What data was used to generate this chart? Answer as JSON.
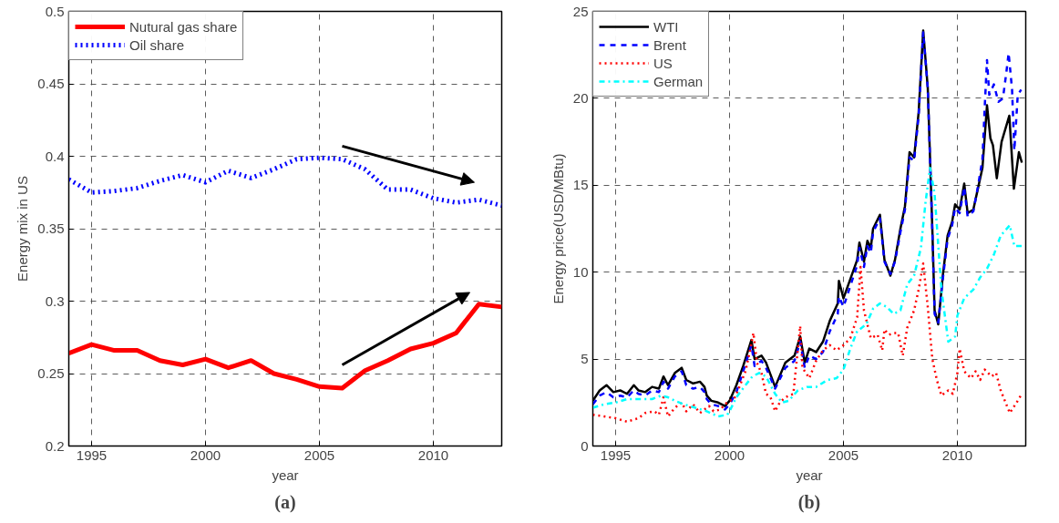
{
  "chart_data": [
    {
      "type": "line",
      "title": "(a)",
      "xlabel": "year",
      "ylabel": "Energy mix in US",
      "xlim": [
        1994,
        2013
      ],
      "xticks": [
        1995,
        2000,
        2005,
        2010
      ],
      "ylim": [
        0.2,
        0.5
      ],
      "yticks": [
        0.2,
        0.25,
        0.3,
        0.35,
        0.4,
        0.45,
        0.5
      ],
      "grid": true,
      "legend": "top left",
      "x": [
        1994,
        1995,
        1996,
        1997,
        1998,
        1999,
        2000,
        2001,
        2002,
        2003,
        2004,
        2005,
        2006,
        2007,
        2008,
        2009,
        2010,
        2011,
        2012,
        2013
      ],
      "series": [
        {
          "name": "Nutural gas share",
          "color": "#ff0000",
          "line_style": "solid",
          "values": [
            0.264,
            0.27,
            0.266,
            0.266,
            0.259,
            0.256,
            0.26,
            0.254,
            0.259,
            0.25,
            0.246,
            0.241,
            0.24,
            0.252,
            0.259,
            0.267,
            0.271,
            0.278,
            0.298,
            0.296
          ]
        },
        {
          "name": "Oil share",
          "color": "#0000ff",
          "line_style": "dotted",
          "values": [
            0.384,
            0.375,
            0.376,
            0.378,
            0.383,
            0.387,
            0.382,
            0.39,
            0.385,
            0.391,
            0.398,
            0.399,
            0.398,
            0.391,
            0.377,
            0.377,
            0.371,
            0.368,
            0.37,
            0.366
          ]
        }
      ]
    },
    {
      "type": "line",
      "title": "(b)",
      "xlabel": "year",
      "ylabel": "Energy price(USD/MBtu)",
      "xlim": [
        1994,
        2013
      ],
      "xticks": [
        1995,
        2000,
        2005,
        2010
      ],
      "ylim": [
        0,
        25
      ],
      "yticks": [
        0,
        5,
        10,
        15,
        20,
        25
      ],
      "grid": true,
      "legend": "top left",
      "series": [
        {
          "name": "WTI",
          "color": "#000000",
          "line_style": "solid",
          "x": [
            1994.0,
            1994.3,
            1994.6,
            1994.9,
            1995.2,
            1995.5,
            1995.8,
            1996.0,
            1996.3,
            1996.6,
            1996.9,
            1997.1,
            1997.3,
            1997.6,
            1997.9,
            1998.1,
            1998.4,
            1998.7,
            1998.9,
            1999.0,
            1999.2,
            1999.5,
            1999.8,
            2000.0,
            2000.3,
            2000.6,
            2000.96,
            2001.1,
            2001.4,
            2001.6,
            2002.0,
            2002.45,
            2002.85,
            2003.1,
            2003.3,
            2003.5,
            2003.8,
            2004.1,
            2004.4,
            2004.75,
            2004.8,
            2005.0,
            2005.3,
            2005.6,
            2005.7,
            2005.9,
            2006.05,
            2006.2,
            2006.3,
            2006.6,
            2006.8,
            2007.06,
            2007.26,
            2007.5,
            2007.7,
            2007.9,
            2008.1,
            2008.3,
            2008.5,
            2008.7,
            2008.9,
            2009.0,
            2009.16,
            2009.36,
            2009.57,
            2009.77,
            2009.9,
            2010.1,
            2010.3,
            2010.45,
            2010.7,
            2010.9,
            2011.1,
            2011.3,
            2011.45,
            2011.56,
            2011.73,
            2011.94,
            2012.28,
            2012.48,
            2012.7,
            2012.83
          ],
          "values": [
            2.6,
            3.2,
            3.5,
            3.1,
            3.2,
            3.0,
            3.5,
            3.2,
            3.1,
            3.4,
            3.3,
            4.0,
            3.5,
            4.2,
            4.5,
            3.8,
            3.6,
            3.7,
            3.4,
            2.9,
            2.6,
            2.5,
            2.3,
            2.6,
            3.5,
            4.6,
            6.1,
            5.0,
            5.2,
            4.8,
            3.4,
            4.8,
            5.2,
            6.3,
            4.8,
            5.6,
            5.4,
            6.0,
            7.2,
            8.2,
            9.5,
            8.5,
            9.6,
            10.7,
            11.7,
            10.6,
            11.8,
            11.4,
            12.5,
            13.3,
            10.7,
            9.8,
            10.7,
            12.5,
            13.8,
            16.9,
            16.6,
            19.2,
            23.9,
            20.6,
            12.5,
            7.8,
            7.0,
            9.8,
            12.1,
            12.9,
            13.9,
            13.6,
            15.1,
            13.4,
            13.6,
            14.8,
            16.0,
            19.6,
            17.7,
            17.3,
            15.4,
            17.5,
            19.0,
            14.8,
            16.9,
            16.3
          ]
        },
        {
          "name": "Brent",
          "color": "#0000ff",
          "line_style": "dashed",
          "x": [
            1994.0,
            1994.3,
            1994.6,
            1994.9,
            1995.2,
            1995.5,
            1995.8,
            1996.0,
            1996.3,
            1996.6,
            1996.9,
            1997.1,
            1997.3,
            1997.6,
            1997.9,
            1998.1,
            1998.4,
            1998.7,
            1998.9,
            1999.0,
            1999.2,
            1999.5,
            1999.8,
            2000.0,
            2000.3,
            2000.6,
            2000.96,
            2001.1,
            2001.4,
            2001.6,
            2002.0,
            2002.45,
            2002.85,
            2003.1,
            2003.3,
            2003.5,
            2003.8,
            2004.1,
            2004.4,
            2004.75,
            2004.8,
            2005.0,
            2005.3,
            2005.6,
            2005.7,
            2005.9,
            2006.05,
            2006.2,
            2006.3,
            2006.6,
            2006.8,
            2007.06,
            2007.26,
            2007.5,
            2007.7,
            2007.9,
            2008.1,
            2008.3,
            2008.5,
            2008.7,
            2008.9,
            2009.0,
            2009.16,
            2009.36,
            2009.57,
            2009.77,
            2009.9,
            2010.1,
            2010.3,
            2010.45,
            2010.7,
            2010.9,
            2011.1,
            2011.2,
            2011.3,
            2011.4,
            2011.6,
            2011.8,
            2012.0,
            2012.15,
            2012.25,
            2012.4,
            2012.5,
            2012.65,
            2012.8
          ],
          "values": [
            2.4,
            2.9,
            3.1,
            2.8,
            2.9,
            2.8,
            3.2,
            3.0,
            2.9,
            3.2,
            3.1,
            3.7,
            3.3,
            4.0,
            4.3,
            3.5,
            3.3,
            3.4,
            3.1,
            2.7,
            2.4,
            2.3,
            2.1,
            2.4,
            3.1,
            4.3,
            5.8,
            4.6,
            4.9,
            4.5,
            3.3,
            4.5,
            4.9,
            6.0,
            4.5,
            5.2,
            5.0,
            5.4,
            6.6,
            7.6,
            8.6,
            8.0,
            9.2,
            10.4,
            11.4,
            10.3,
            11.5,
            11.1,
            12.3,
            13.1,
            10.6,
            9.9,
            10.6,
            12.3,
            13.6,
            16.6,
            16.4,
            19.0,
            23.8,
            20.6,
            12.4,
            7.6,
            7.1,
            9.6,
            11.9,
            12.7,
            13.7,
            13.4,
            14.9,
            13.2,
            13.5,
            14.9,
            16.5,
            19.5,
            22.2,
            20.2,
            20.8,
            19.8,
            20.0,
            21.5,
            22.6,
            20.5,
            17.0,
            20.2,
            20.5
          ]
        },
        {
          "name": "US",
          "color": "#ff0000",
          "line_style": "dotted",
          "x": [
            1994.0,
            1994.5,
            1995.0,
            1995.5,
            1996.0,
            1996.3,
            1996.7,
            1996.9,
            1997.1,
            1997.3,
            1997.6,
            1997.9,
            1998.1,
            1998.4,
            1998.7,
            1998.9,
            1999.1,
            1999.3,
            1999.6,
            1999.8,
            2000.0,
            2000.2,
            2000.4,
            2000.7,
            2000.9,
            2001.05,
            2001.2,
            2001.4,
            2001.6,
            2001.8,
            2002.0,
            2002.2,
            2002.45,
            2002.8,
            2003.1,
            2003.2,
            2003.5,
            2003.8,
            2004.1,
            2004.4,
            2004.7,
            2005.0,
            2005.3,
            2005.6,
            2005.75,
            2005.9,
            2006.2,
            2006.5,
            2006.7,
            2006.8,
            2007.0,
            2007.2,
            2007.4,
            2007.6,
            2007.8,
            2008.1,
            2008.3,
            2008.5,
            2008.7,
            2008.9,
            2009.1,
            2009.3,
            2009.6,
            2009.8,
            2010.0,
            2010.1,
            2010.3,
            2010.6,
            2010.8,
            2011.0,
            2011.2,
            2011.5,
            2011.7,
            2011.9,
            2012.3,
            2012.6,
            2012.83
          ],
          "values": [
            1.8,
            1.7,
            1.6,
            1.4,
            1.6,
            1.9,
            2.0,
            1.8,
            2.8,
            1.7,
            2.2,
            2.5,
            2.0,
            2.4,
            1.9,
            2.1,
            2.3,
            2.0,
            2.1,
            2.4,
            2.6,
            2.7,
            3.3,
            4.3,
            5.5,
            6.5,
            4.8,
            4.2,
            3.0,
            2.8,
            2.0,
            2.5,
            2.8,
            3.0,
            6.9,
            4.5,
            3.9,
            4.9,
            5.5,
            5.8,
            5.5,
            5.8,
            6.2,
            7.4,
            10.3,
            7.8,
            6.2,
            6.4,
            5.5,
            6.7,
            6.4,
            6.5,
            6.5,
            5.2,
            6.8,
            7.8,
            9.0,
            10.5,
            8.0,
            5.0,
            3.8,
            2.9,
            3.2,
            3.0,
            4.2,
            5.6,
            4.3,
            3.9,
            4.3,
            3.8,
            4.4,
            4.0,
            4.2,
            3.2,
            1.9,
            2.5,
            3.0
          ]
        },
        {
          "name": "German",
          "color": "#00ffff",
          "line_style": "dashdot",
          "x": [
            1994.0,
            1994.5,
            1995.0,
            1995.5,
            1996.0,
            1996.6,
            1997.0,
            1997.3,
            1997.6,
            1998.0,
            1998.5,
            1999.0,
            1999.5,
            1999.9,
            2000.0,
            2000.3,
            2000.7,
            2001.0,
            2001.3,
            2001.6,
            2002.0,
            2002.3,
            2002.6,
            2003.0,
            2003.4,
            2003.8,
            2004.3,
            2004.7,
            2005.0,
            2005.3,
            2005.6,
            2006.0,
            2006.3,
            2006.6,
            2006.9,
            2007.2,
            2007.5,
            2007.8,
            2008.1,
            2008.4,
            2008.6,
            2008.8,
            2009.0,
            2009.3,
            2009.6,
            2009.9,
            2010.0,
            2010.3,
            2010.7,
            2011.0,
            2011.3,
            2011.6,
            2011.9,
            2012.3,
            2012.5,
            2012.83
          ],
          "values": [
            2.2,
            2.4,
            2.5,
            2.7,
            2.7,
            2.7,
            2.9,
            2.8,
            2.6,
            2.4,
            2.2,
            2.0,
            1.7,
            1.8,
            2.0,
            2.8,
            3.5,
            4.0,
            4.2,
            4.0,
            3.0,
            2.5,
            2.6,
            3.2,
            3.4,
            3.4,
            3.8,
            3.9,
            4.4,
            5.6,
            6.6,
            7.0,
            7.9,
            8.2,
            8.0,
            7.6,
            7.8,
            9.3,
            9.8,
            11.4,
            14.0,
            16.0,
            14.5,
            9.0,
            6.0,
            6.3,
            7.5,
            8.5,
            9.0,
            9.7,
            10.2,
            11.0,
            12.1,
            12.7,
            11.5,
            11.5
          ]
        }
      ]
    }
  ]
}
